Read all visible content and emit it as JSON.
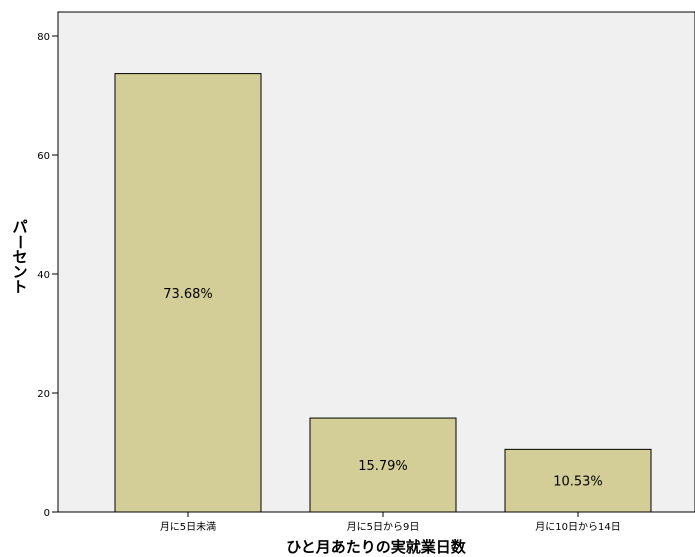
{
  "chart_data": {
    "type": "bar",
    "categories": [
      "月に5日未満",
      "月に5日から9日",
      "月に10日から14日"
    ],
    "values": [
      73.68,
      15.79,
      10.53
    ],
    "data_labels": [
      "73.68%",
      "15.79%",
      "10.53%"
    ],
    "xlabel": "ひと月あたりの実就業日数",
    "ylabel": "パーセント",
    "ylim": [
      0,
      80
    ],
    "yticks": [
      0,
      20,
      40,
      60,
      80
    ],
    "grid": false,
    "colors": {
      "plot_background": "#f0f0f0",
      "bar_fill": "#d3ce97",
      "bar_stroke": "#000000"
    }
  }
}
